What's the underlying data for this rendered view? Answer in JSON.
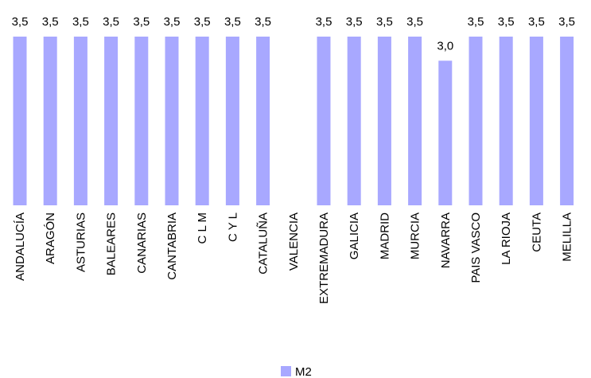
{
  "chart_data": {
    "type": "bar",
    "categories": [
      "ANDALUCÍA",
      "ARAGÓN",
      "ASTURIAS",
      "BALEARES",
      "CANARIAS",
      "CANTABRIA",
      "C L M",
      "C Y L",
      "CATALUÑA",
      "VALENCIA",
      "EXTREMADURA",
      "GALICIA",
      "MADRID",
      "MURCIA",
      "NAVARRA",
      "PAIS VASCO",
      "LA RIOJA",
      "CEUTA",
      "MELILLA"
    ],
    "series": [
      {
        "name": "M2",
        "values": [
          3.5,
          3.5,
          3.5,
          3.5,
          3.5,
          3.5,
          3.5,
          3.5,
          3.5,
          null,
          3.5,
          3.5,
          3.5,
          3.5,
          3.0,
          3.5,
          3.5,
          3.5,
          3.5
        ],
        "value_labels": [
          "3,5",
          "3,5",
          "3,5",
          "3,5",
          "3,5",
          "3,5",
          "3,5",
          "3,5",
          "3,5",
          "",
          "3,5",
          "3,5",
          "3,5",
          "3,5",
          "3,0",
          "3,5",
          "3,5",
          "3,5",
          "3,5"
        ],
        "color": "#a8a8ff"
      }
    ],
    "ylim": [
      0,
      3.5
    ],
    "grid": false,
    "legend": {
      "position": "bottom",
      "entries": [
        "M2"
      ]
    }
  }
}
